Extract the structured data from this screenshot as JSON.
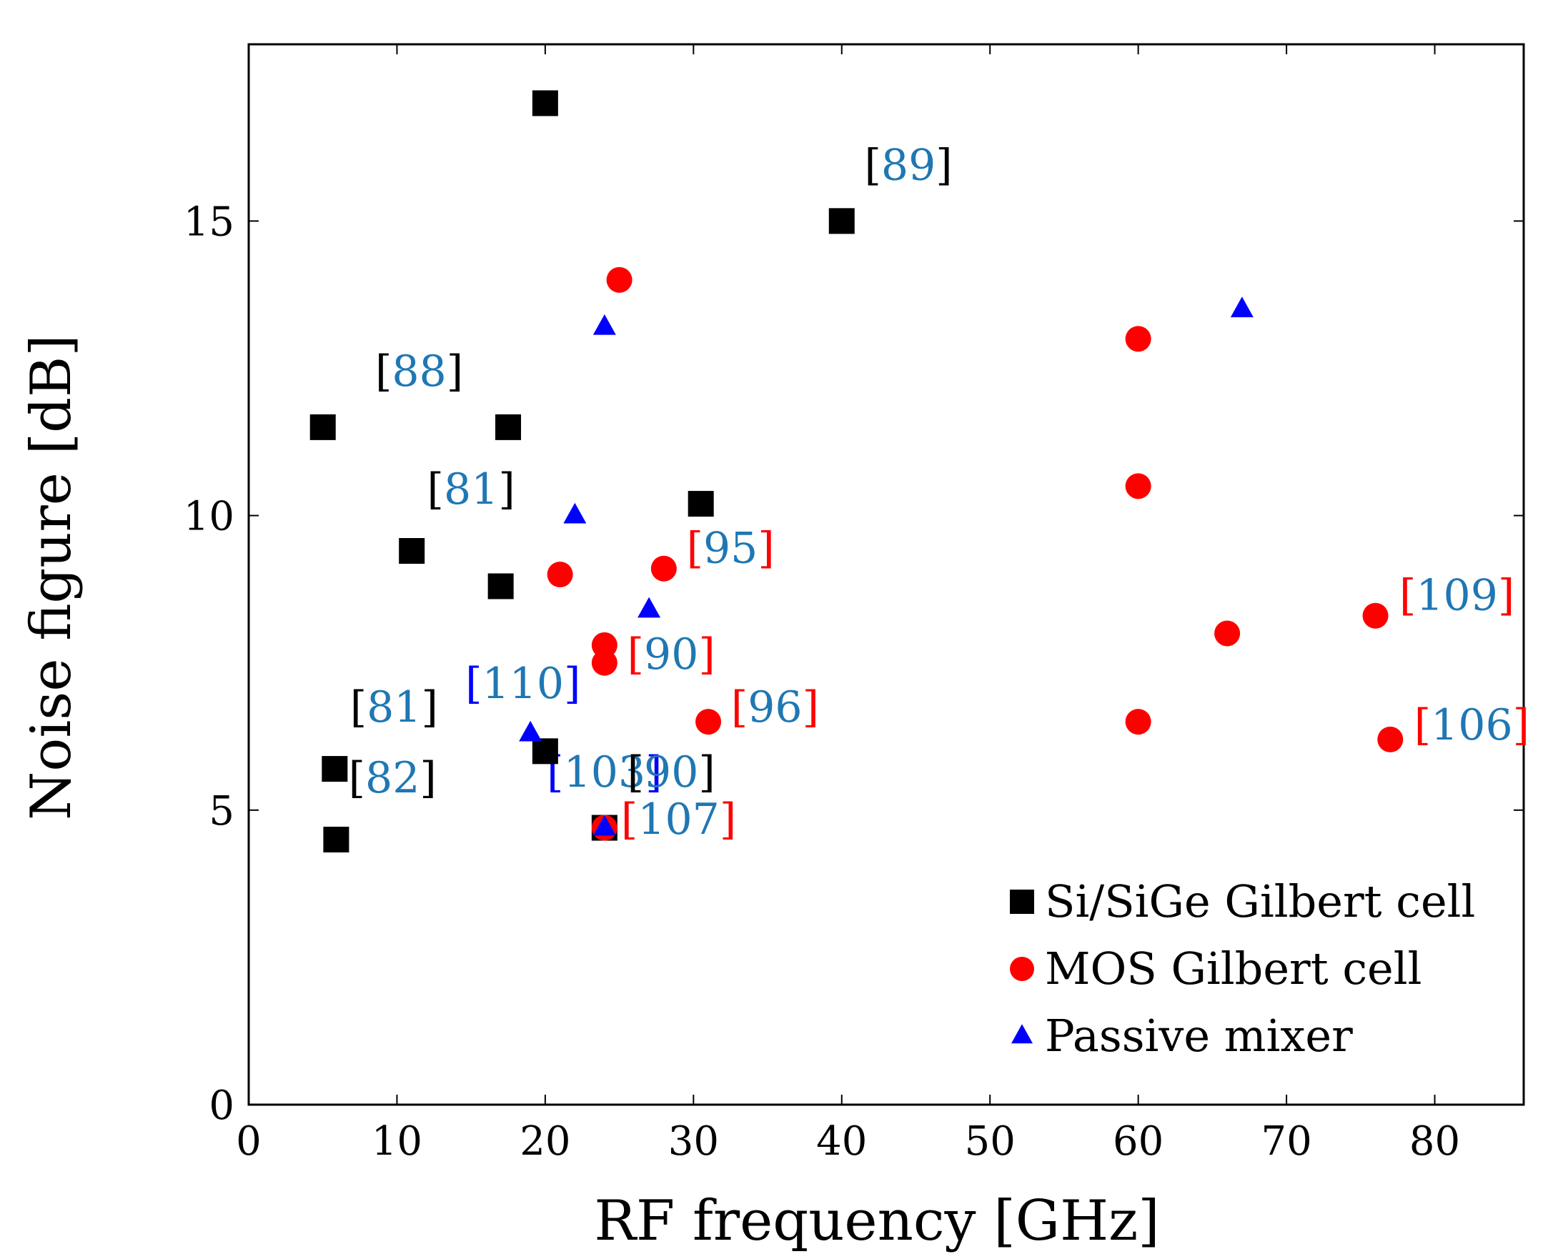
{
  "chart_data": {
    "type": "scatter",
    "title": "",
    "xlabel": "RF frequency [GHz]",
    "ylabel": "Noise figure [dB]",
    "xlim": [
      0,
      86
    ],
    "ylim": [
      0,
      18
    ],
    "xticks": [
      0,
      10,
      20,
      30,
      40,
      50,
      60,
      70,
      80
    ],
    "yticks": [
      0,
      5,
      10,
      15
    ],
    "grid": false,
    "legend_position": "bottom-right",
    "colors": {
      "cite_number": "#1f77b4",
      "bracket_black": "#000000",
      "bracket_red": "#ff0000",
      "bracket_blue": "#0000ff"
    },
    "series": [
      {
        "name": "Si/SiGe Gilbert cell",
        "marker": "square",
        "color": "#000000",
        "points": [
          {
            "x": 5,
            "y": 11.5
          },
          {
            "x": 20,
            "y": 17
          },
          {
            "x": 40,
            "y": 15
          },
          {
            "x": 17.5,
            "y": 11.5
          },
          {
            "x": 11,
            "y": 9.4
          },
          {
            "x": 17,
            "y": 8.8
          },
          {
            "x": 30.5,
            "y": 10.2
          },
          {
            "x": 5.8,
            "y": 5.7
          },
          {
            "x": 5.9,
            "y": 4.5
          },
          {
            "x": 20,
            "y": 6
          },
          {
            "x": 24,
            "y": 4.7
          }
        ]
      },
      {
        "name": "MOS Gilbert cell",
        "marker": "circle",
        "color": "#ff0000",
        "points": [
          {
            "x": 25,
            "y": 14
          },
          {
            "x": 21,
            "y": 9
          },
          {
            "x": 28,
            "y": 9.1
          },
          {
            "x": 24,
            "y": 7.8
          },
          {
            "x": 24,
            "y": 7.5
          },
          {
            "x": 31,
            "y": 6.5
          },
          {
            "x": 24,
            "y": 4.7
          },
          {
            "x": 60,
            "y": 13
          },
          {
            "x": 60,
            "y": 10.5
          },
          {
            "x": 60,
            "y": 6.5
          },
          {
            "x": 66,
            "y": 8
          },
          {
            "x": 76,
            "y": 8.3
          },
          {
            "x": 77,
            "y": 6.2
          }
        ]
      },
      {
        "name": "Passive mixer",
        "marker": "triangle",
        "color": "#0000ff",
        "points": [
          {
            "x": 24,
            "y": 13.2
          },
          {
            "x": 22,
            "y": 10
          },
          {
            "x": 27,
            "y": 8.4
          },
          {
            "x": 19,
            "y": 6.3
          },
          {
            "x": 24,
            "y": 4.7
          },
          {
            "x": 67,
            "y": 13.5
          }
        ]
      }
    ],
    "annotations": [
      {
        "num": "88",
        "bracket": "black",
        "x": 11.5,
        "y": 12.2
      },
      {
        "num": "89",
        "bracket": "black",
        "x": 44.5,
        "y": 15.7
      },
      {
        "num": "81",
        "bracket": "black",
        "x": 15,
        "y": 10.2
      },
      {
        "num": "95",
        "bracket": "red",
        "x": 32.5,
        "y": 9.2
      },
      {
        "num": "109",
        "bracket": "red",
        "x": 81.5,
        "y": 8.4
      },
      {
        "num": "90",
        "bracket": "red",
        "x": 28.5,
        "y": 7.4
      },
      {
        "num": "110",
        "bracket": "blue",
        "x": 18.5,
        "y": 6.9
      },
      {
        "num": "96",
        "bracket": "red",
        "x": 35.5,
        "y": 6.5
      },
      {
        "num": "106",
        "bracket": "red",
        "x": 82.5,
        "y": 6.2
      },
      {
        "num": "81",
        "bracket": "black",
        "x": 9.8,
        "y": 6.5
      },
      {
        "num": "82",
        "bracket": "black",
        "x": 9.7,
        "y": 5.3
      },
      {
        "num": "103",
        "bracket": "blue",
        "x": 24,
        "y": 5.4
      },
      {
        "num": "90",
        "bracket": "black",
        "x": 28.5,
        "y": 5.4
      },
      {
        "num": "107",
        "bracket": "red",
        "x": 29,
        "y": 4.6
      }
    ]
  }
}
